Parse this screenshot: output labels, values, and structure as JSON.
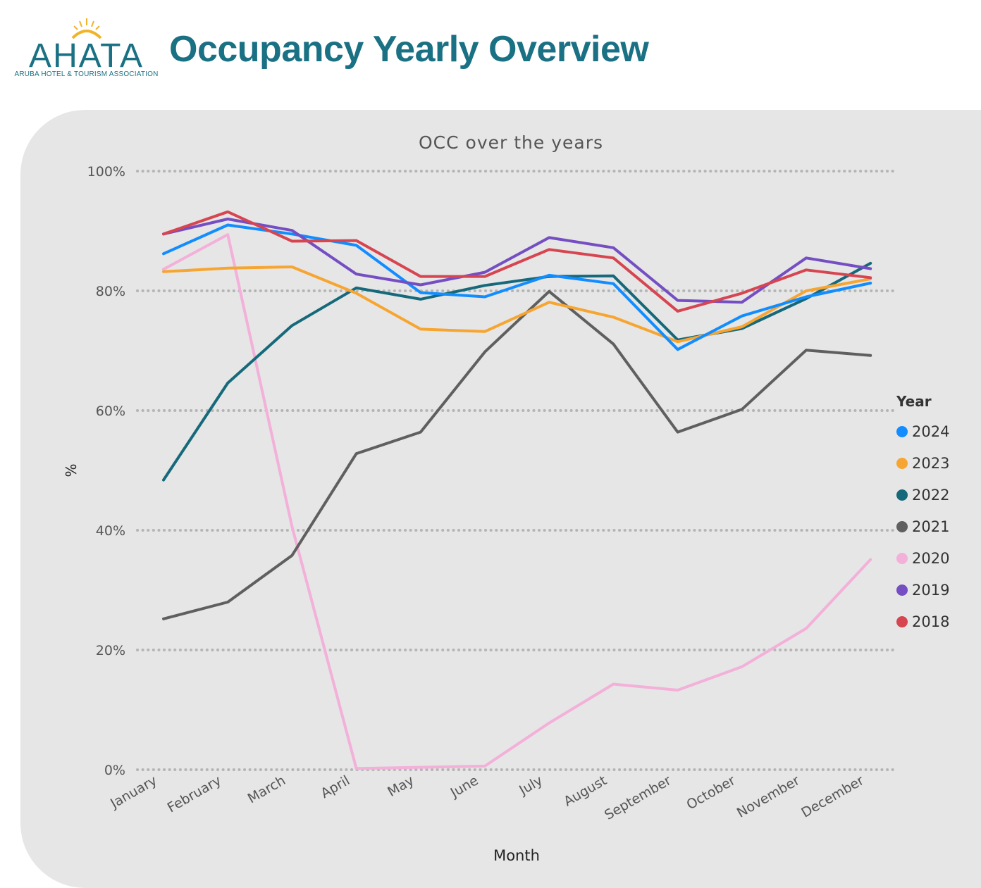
{
  "header": {
    "logo_text": "AHATA",
    "logo_subtext": "ARUBA HOTEL & TOURISM ASSOCIATION",
    "title": "Occupancy Yearly Overview"
  },
  "colors": {
    "brand": "#1a7184",
    "sun": "#f0b429",
    "panel_bg": "#e6e6e6"
  },
  "chart_data": {
    "type": "line",
    "title": "OCC over the years",
    "xlabel": "Month",
    "ylabel": "%",
    "ylim": [
      0,
      100
    ],
    "yticks": [
      0,
      20,
      40,
      60,
      80,
      100
    ],
    "ytick_labels": [
      "0%",
      "20%",
      "40%",
      "60%",
      "80%",
      "100%"
    ],
    "grid": "horizontal dotted",
    "legend_title": "Year",
    "legend_position": "right",
    "categories": [
      "January",
      "February",
      "March",
      "April",
      "May",
      "June",
      "July",
      "August",
      "September",
      "October",
      "November",
      "December"
    ],
    "series": [
      {
        "name": "2024",
        "color": "#118dff",
        "values": [
          86.2,
          91.0,
          89.5,
          87.6,
          79.7,
          79.0,
          82.6,
          81.2,
          70.2,
          75.8,
          79.0,
          81.3
        ]
      },
      {
        "name": "2023",
        "color": "#f7a531",
        "values": [
          83.2,
          83.8,
          84.0,
          79.6,
          73.6,
          73.2,
          78.1,
          75.6,
          71.5,
          74.0,
          80.0,
          82.0
        ]
      },
      {
        "name": "2022",
        "color": "#16697a",
        "values": [
          48.4,
          64.6,
          74.2,
          80.5,
          78.6,
          80.9,
          82.4,
          82.5,
          71.8,
          73.7,
          78.7,
          84.6
        ]
      },
      {
        "name": "2021",
        "color": "#5f5f5f",
        "values": [
          25.2,
          28.0,
          35.8,
          52.8,
          56.4,
          69.8,
          79.9,
          71.1,
          56.4,
          60.2,
          70.1,
          69.2
        ]
      },
      {
        "name": "2020",
        "color": "#f3b0d9",
        "values": [
          83.6,
          89.4,
          40.6,
          0.2,
          0.4,
          0.6,
          7.8,
          14.3,
          13.3,
          17.2,
          23.6,
          35.1
        ]
      },
      {
        "name": "2019",
        "color": "#744ec2",
        "values": [
          89.5,
          92.0,
          90.1,
          82.8,
          81.0,
          83.1,
          88.9,
          87.2,
          78.4,
          78.1,
          85.5,
          83.7
        ]
      },
      {
        "name": "2018",
        "color": "#d64550",
        "values": [
          89.5,
          93.2,
          88.3,
          88.4,
          82.4,
          82.4,
          86.9,
          85.5,
          76.6,
          79.6,
          83.5,
          82.2
        ]
      }
    ]
  }
}
